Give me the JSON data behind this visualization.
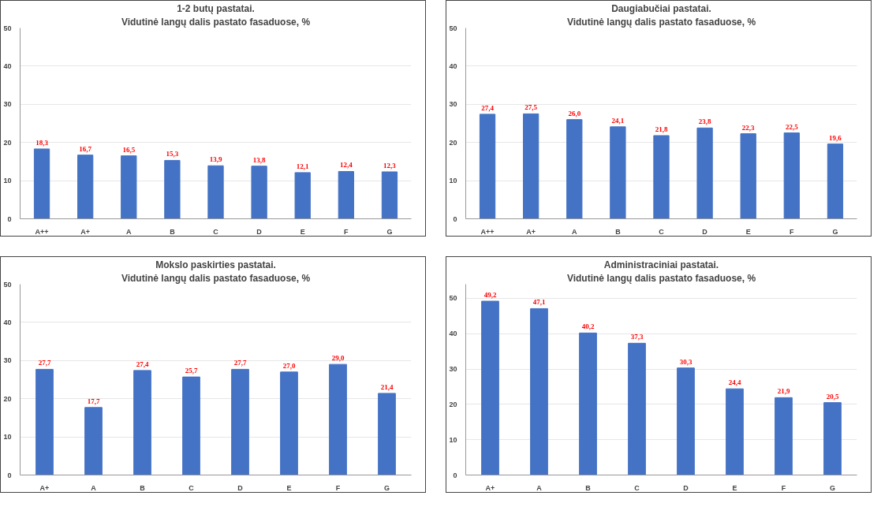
{
  "chart_data": [
    {
      "type": "bar",
      "title": "1-2 butų pastatai.",
      "subtitle": "Vidutinė langų dalis pastato fasaduose, %",
      "categories": [
        "A++",
        "A+",
        "A",
        "B",
        "C",
        "D",
        "E",
        "F",
        "G"
      ],
      "values": [
        18.3,
        16.7,
        16.5,
        15.3,
        13.9,
        13.8,
        12.1,
        12.4,
        12.3
      ],
      "value_labels": [
        "18,3",
        "16,7",
        "16,5",
        "15,3",
        "13,9",
        "13,8",
        "12,1",
        "12,4",
        "12,3"
      ],
      "color": "#4472c4",
      "ylim": [
        0,
        50
      ],
      "yticks": [
        0,
        10,
        20,
        30,
        40,
        50
      ],
      "grid": "y"
    },
    {
      "type": "bar",
      "title": "Daugiabučiai pastatai.",
      "subtitle": "Vidutinė langų dalis pastato fasaduose, %",
      "categories": [
        "A++",
        "A+",
        "A",
        "B",
        "C",
        "D",
        "E",
        "F",
        "G"
      ],
      "values": [
        27.4,
        27.5,
        26.0,
        24.1,
        21.8,
        23.8,
        22.3,
        22.5,
        19.6
      ],
      "value_labels": [
        "27,4",
        "27,5",
        "26,0",
        "24,1",
        "21,8",
        "23,8",
        "22,3",
        "22,5",
        "19,6"
      ],
      "color": "#4472c4",
      "ylim": [
        0,
        50
      ],
      "yticks": [
        0,
        10,
        20,
        30,
        40,
        50
      ],
      "grid": "y"
    },
    {
      "type": "bar",
      "title": "Mokslo paskirties pastatai.",
      "subtitle": "Vidutinė langų dalis pastato fasaduose, %",
      "categories": [
        "A+",
        "A",
        "B",
        "C",
        "D",
        "E",
        "F",
        "G"
      ],
      "values": [
        27.7,
        17.7,
        27.4,
        25.7,
        27.7,
        27.0,
        29.0,
        21.4
      ],
      "value_labels": [
        "27,7",
        "17,7",
        "27,4",
        "25,7",
        "27,7",
        "27,0",
        "29,0",
        "21,4"
      ],
      "color": "#4472c4",
      "ylim": [
        0,
        50
      ],
      "yticks": [
        0,
        10,
        20,
        30,
        40,
        50
      ],
      "grid": "y"
    },
    {
      "type": "bar",
      "title": "Administraciniai pastatai.",
      "subtitle": "Vidutinė langų dalis pastato fasaduose, %",
      "categories": [
        "A+",
        "A",
        "B",
        "C",
        "D",
        "E",
        "F",
        "G"
      ],
      "values": [
        49.2,
        47.1,
        40.2,
        37.3,
        30.3,
        24.4,
        21.9,
        20.5
      ],
      "value_labels": [
        "49,2",
        "47,1",
        "40,2",
        "37,3",
        "30,3",
        "24,4",
        "21,9",
        "20,5"
      ],
      "color": "#4472c4",
      "ylim": [
        0,
        54
      ],
      "yticks": [
        0,
        10,
        20,
        30,
        40,
        50
      ],
      "grid": "y"
    }
  ]
}
